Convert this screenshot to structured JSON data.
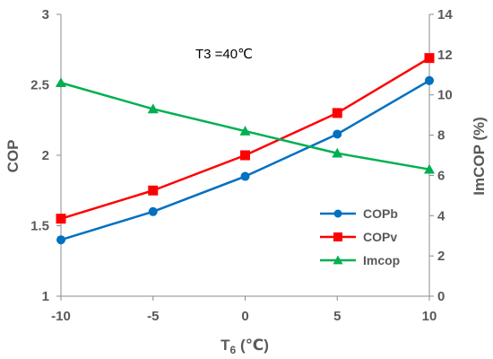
{
  "chart_data": {
    "type": "line",
    "x": [
      -10,
      -5,
      0,
      5,
      10
    ],
    "xlabel_main": "T",
    "xlabel_sub": "6",
    "xlabel_unit": " (℃)",
    "ylabel": "COP",
    "y2label": "ImCOP (%)",
    "xlim": [
      -10,
      10
    ],
    "ylim": [
      1,
      3
    ],
    "y2lim": [
      0,
      14
    ],
    "x_ticks": [
      -10,
      -5,
      0,
      5,
      10
    ],
    "y_ticks": [
      1,
      1.5,
      2,
      2.5,
      3
    ],
    "y_tick_labels": [
      "1",
      "1.5",
      "2",
      "2.5",
      "3"
    ],
    "y2_ticks": [
      0,
      2,
      4,
      6,
      8,
      10,
      12,
      14
    ],
    "annotation": "T3 =40℃",
    "grid": false,
    "legend_position": "right",
    "series": [
      {
        "name": "COPb",
        "axis": "left",
        "marker": "circle",
        "color": "#0070C0",
        "values": [
          1.4,
          1.6,
          1.85,
          2.15,
          2.53
        ]
      },
      {
        "name": "COPv",
        "axis": "left",
        "marker": "square",
        "color": "#FF0000",
        "values": [
          1.55,
          1.75,
          2.0,
          2.3,
          2.69
        ]
      },
      {
        "name": "Imcop",
        "axis": "right",
        "marker": "triangle",
        "color": "#00B050",
        "values": [
          10.6,
          9.3,
          8.2,
          7.1,
          6.3
        ]
      }
    ]
  }
}
